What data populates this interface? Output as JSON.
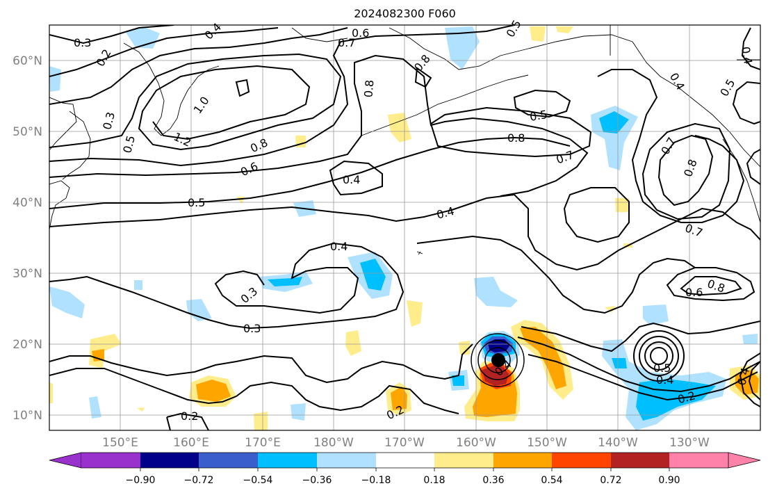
{
  "title": "2024082300 F060",
  "lat_labels": [
    "60°N",
    "50°N",
    "40°N",
    "30°N",
    "20°N",
    "10°N"
  ],
  "lon_labels": [
    "150°E",
    "160°E",
    "170°E",
    "180°W",
    "170°W",
    "160°W",
    "150°W",
    "140°W",
    "130°W"
  ],
  "contour_labels": [
    "0.3",
    "0.2",
    "0.4",
    "0.6",
    "0.7",
    "0.8",
    "0.5",
    "0.3",
    "0.5",
    "1.0",
    "1.2",
    "0.8",
    "0.6",
    "0.8",
    "0.5",
    "0.8",
    "0.7",
    "0.4",
    "0.4",
    "0.5",
    "0.4",
    "0.7",
    "0.8",
    "0.7",
    "0.4",
    "0.5",
    "0.4",
    "0.6",
    "0.8",
    "0.3",
    "0.3",
    "0.2",
    "0.2",
    "0.4",
    "0.5",
    "0.2",
    "0.4",
    "0.4"
  ],
  "colorbar": {
    "ticks": [
      "−0.90",
      "−0.72",
      "−0.54",
      "−0.36",
      "−0.18",
      "0.18",
      "0.36",
      "0.54",
      "0.72",
      "0.90"
    ],
    "colors": [
      "#9932cc",
      "#00008b",
      "#3a5fcd",
      "#00bfff",
      "#b0e2ff",
      "#ffffff",
      "#ffec8b",
      "#ffa500",
      "#ff4500",
      "#b22222",
      "#ff82ab"
    ]
  },
  "storm_marker": "filled-dot"
}
